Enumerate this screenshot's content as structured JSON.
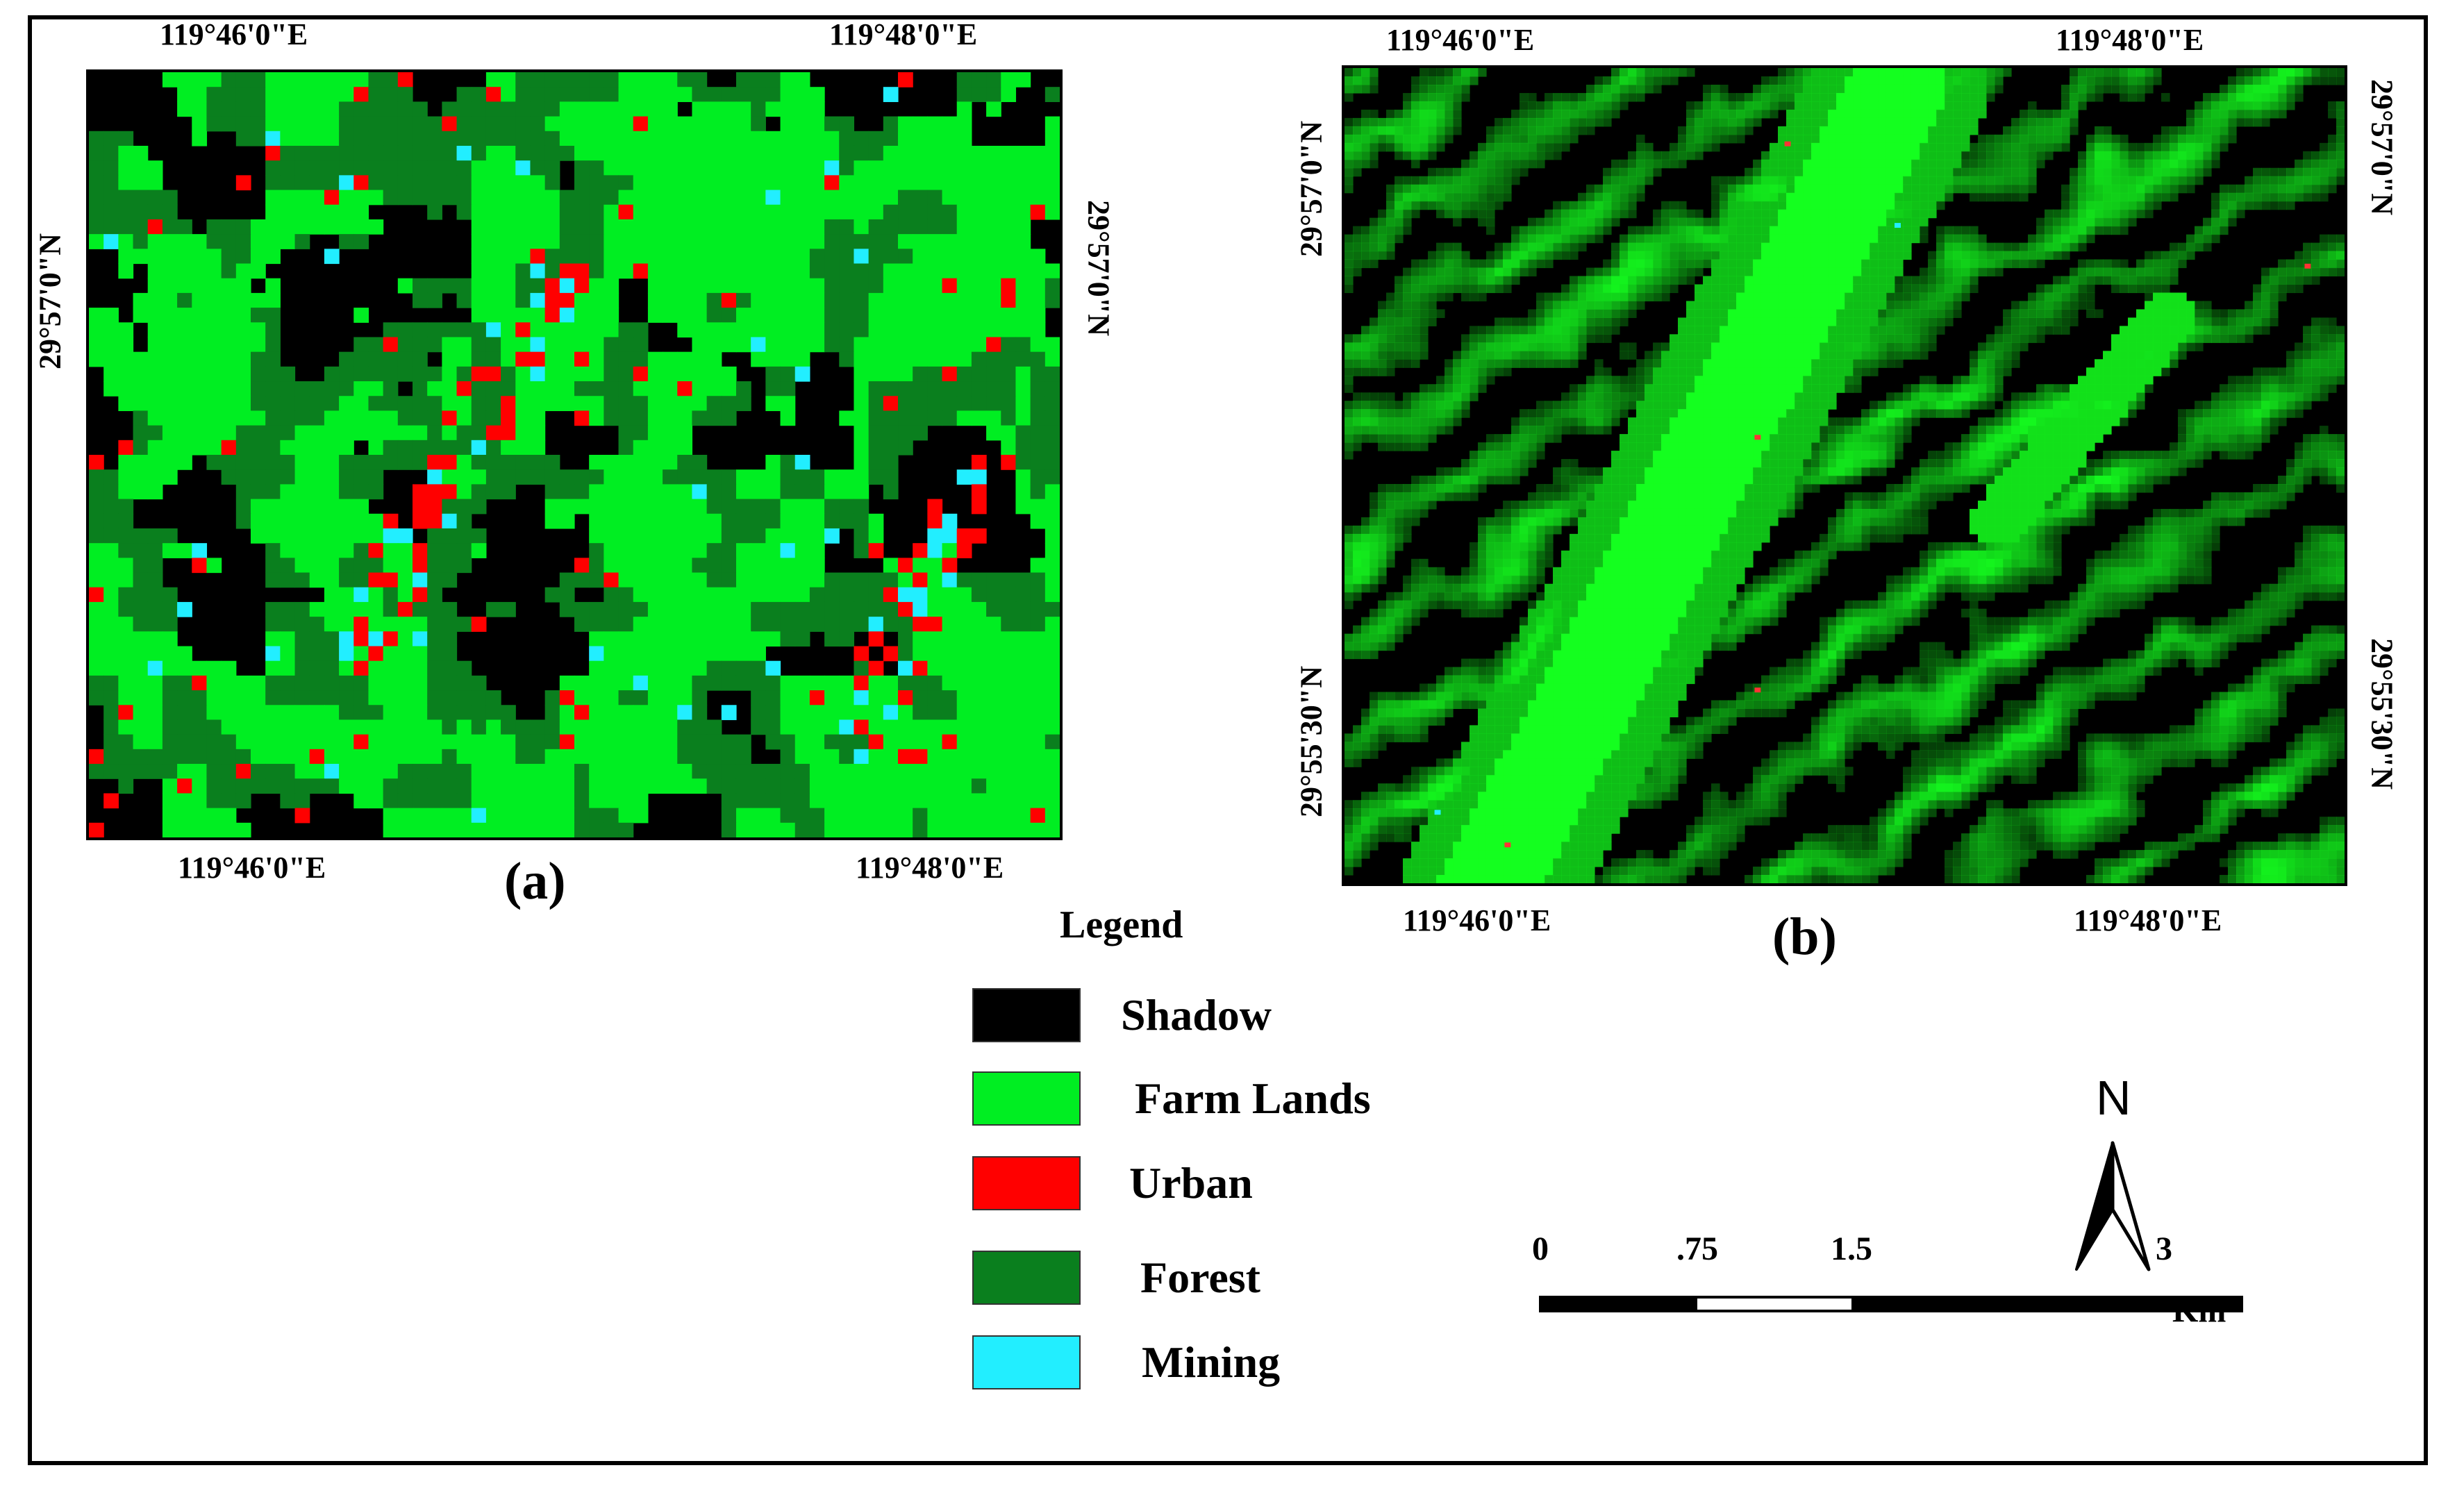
{
  "colors": {
    "shadow": "#000000",
    "farm_lands": "#00ee22",
    "urban": "#ff0000",
    "forest": "#0a7f1e",
    "mining": "#22eeff"
  },
  "map_a": {
    "caption": "(a)",
    "top_coord_left": "119°46'0\"E",
    "top_coord_right": "119°48'0\"E",
    "bottom_coord_left": "119°46'0\"E",
    "bottom_coord_right": "119°48'0\"E",
    "left_coord": "29°57'0\"N",
    "right_coord": "29°57'0\"N"
  },
  "map_b": {
    "caption": "(b)",
    "top_coord_left": "119°46'0\"E",
    "top_coord_right": "119°48'0\"E",
    "bottom_coord_left": "119°46'0\"E",
    "bottom_coord_right": "119°48'0\"E",
    "left_coord_top": "29°57'0\"N",
    "left_coord_bottom": "29°55'30\"N",
    "right_coord_top": "29°57'0\"N",
    "right_coord_bottom": "29°55'30\"N"
  },
  "legend": {
    "title": "Legend",
    "items": [
      {
        "label": "Shadow",
        "color": "#000000"
      },
      {
        "label": "Farm Lands",
        "color": "#00ee22"
      },
      {
        "label": "Urban",
        "color": "#ff0000"
      },
      {
        "label": "Forest",
        "color": "#0a7f1e"
      },
      {
        "label": "Mining",
        "color": "#22eeff"
      }
    ]
  },
  "north_arrow": {
    "label": "N"
  },
  "scale_bar": {
    "ticks": [
      "0",
      ".75",
      "1.5",
      "3"
    ],
    "unit": "Km"
  }
}
